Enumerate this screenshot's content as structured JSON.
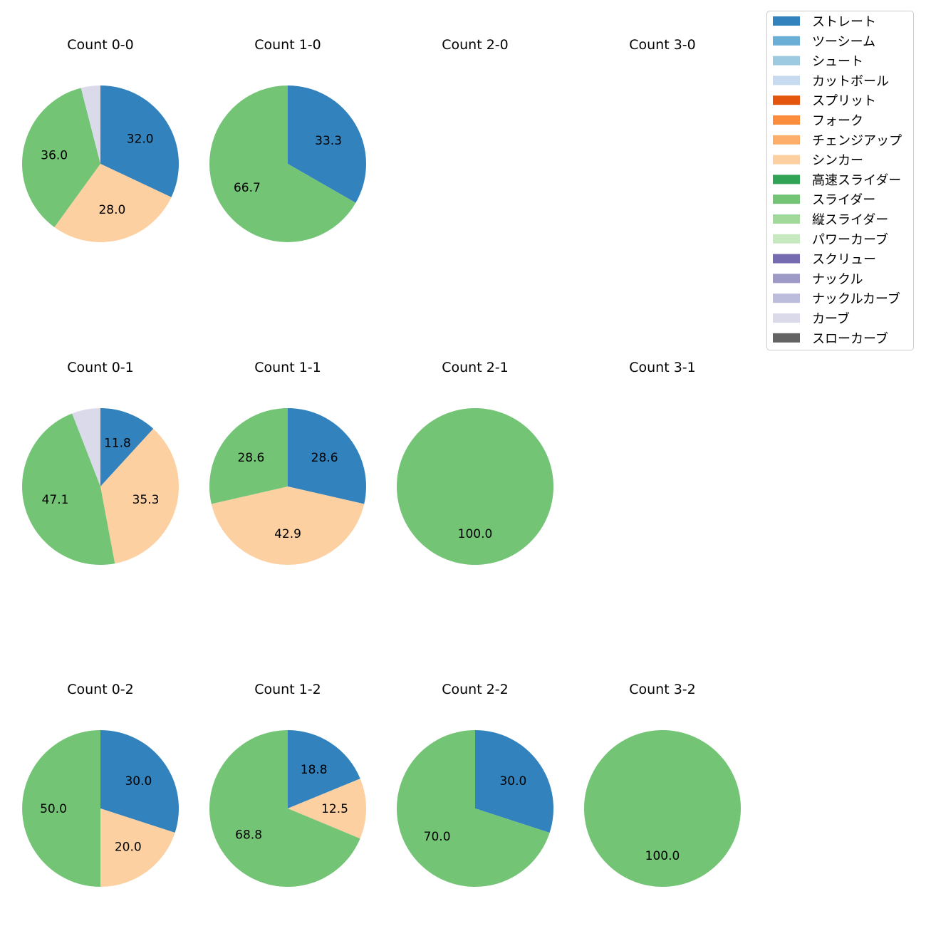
{
  "chart_data": {
    "type": "pie",
    "legend": {
      "placement": "top-right",
      "entries": [
        {
          "name": "ストレート",
          "color": "#3182bd"
        },
        {
          "name": "ツーシーム",
          "color": "#6baed6"
        },
        {
          "name": "シュート",
          "color": "#9ecae1"
        },
        {
          "name": "カットボール",
          "color": "#c6dbef"
        },
        {
          "name": "スプリット",
          "color": "#e6550d"
        },
        {
          "name": "フォーク",
          "color": "#fd8d3c"
        },
        {
          "name": "チェンジアップ",
          "color": "#fdae6b"
        },
        {
          "name": "シンカー",
          "color": "#fdd0a2"
        },
        {
          "name": "高速スライダー",
          "color": "#31a354"
        },
        {
          "name": "スライダー",
          "color": "#74c476"
        },
        {
          "name": "縦スライダー",
          "color": "#a1d99b"
        },
        {
          "name": "パワーカーブ",
          "color": "#c7e9c0"
        },
        {
          "name": "スクリュー",
          "color": "#756bb1"
        },
        {
          "name": "ナックル",
          "color": "#9e9ac8"
        },
        {
          "name": "ナックルカーブ",
          "color": "#bcbddc"
        },
        {
          "name": "カーブ",
          "color": "#dadaeb"
        },
        {
          "name": "スローカーブ",
          "color": "#636363"
        }
      ]
    },
    "pies": [
      {
        "title": "Count 0-0",
        "slices": [
          {
            "category": "ストレート",
            "value": 32.0
          },
          {
            "category": "シンカー",
            "value": 28.0
          },
          {
            "category": "スライダー",
            "value": 36.0
          },
          {
            "category": "カーブ",
            "value": 4.0,
            "label": ""
          }
        ]
      },
      {
        "title": "Count 1-0",
        "slices": [
          {
            "category": "ストレート",
            "value": 33.3
          },
          {
            "category": "スライダー",
            "value": 66.7
          }
        ]
      },
      {
        "title": "Count 2-0",
        "slices": []
      },
      {
        "title": "Count 3-0",
        "slices": []
      },
      {
        "title": "Count 0-1",
        "slices": [
          {
            "category": "ストレート",
            "value": 11.8
          },
          {
            "category": "シンカー",
            "value": 35.3
          },
          {
            "category": "スライダー",
            "value": 47.1
          },
          {
            "category": "カーブ",
            "value": 5.9,
            "label": ""
          }
        ]
      },
      {
        "title": "Count 1-1",
        "slices": [
          {
            "category": "ストレート",
            "value": 28.6
          },
          {
            "category": "シンカー",
            "value": 42.9
          },
          {
            "category": "スライダー",
            "value": 28.6
          }
        ]
      },
      {
        "title": "Count 2-1",
        "slices": [
          {
            "category": "スライダー",
            "value": 100.0
          }
        ]
      },
      {
        "title": "Count 3-1",
        "slices": []
      },
      {
        "title": "Count 0-2",
        "slices": [
          {
            "category": "ストレート",
            "value": 30.0
          },
          {
            "category": "シンカー",
            "value": 20.0
          },
          {
            "category": "スライダー",
            "value": 50.0
          }
        ]
      },
      {
        "title": "Count 1-2",
        "slices": [
          {
            "category": "ストレート",
            "value": 18.8
          },
          {
            "category": "シンカー",
            "value": 12.5
          },
          {
            "category": "スライダー",
            "value": 68.8
          }
        ]
      },
      {
        "title": "Count 2-2",
        "slices": [
          {
            "category": "ストレート",
            "value": 30.0
          },
          {
            "category": "スライダー",
            "value": 70.0
          }
        ]
      },
      {
        "title": "Count 3-2",
        "slices": [
          {
            "category": "スライダー",
            "value": 100.0
          }
        ]
      }
    ]
  }
}
